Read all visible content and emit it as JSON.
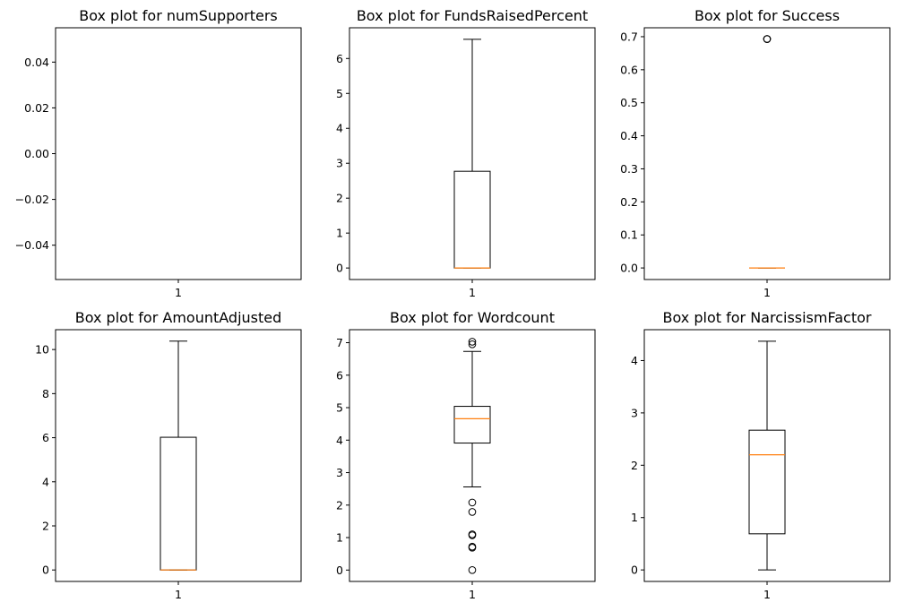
{
  "figure": {
    "background": "#ffffff",
    "box_color": "#000000",
    "median_color": "#ff7f0e"
  },
  "chart_data": [
    {
      "type": "box",
      "title": "Box plot for numSupporters",
      "categories": [
        "1"
      ],
      "ylim": [
        -0.055,
        0.055
      ],
      "yticks": [
        -0.04,
        -0.02,
        0.0,
        0.02,
        0.04
      ],
      "ytick_labels": [
        "−0.04",
        "−0.02",
        "0.00",
        "0.02",
        "0.04"
      ],
      "box": null
    },
    {
      "type": "box",
      "title": "Box plot for FundsRaisedPercent",
      "categories": [
        "1"
      ],
      "ylim": [
        -0.33,
        6.88
      ],
      "yticks": [
        0,
        1,
        2,
        3,
        4,
        5,
        6
      ],
      "ytick_labels": [
        "0",
        "1",
        "2",
        "3",
        "4",
        "5",
        "6"
      ],
      "box": {
        "whisker_low": 0.0,
        "q1": 0.0,
        "median": 0.0,
        "q3": 2.77,
        "whisker_high": 6.55,
        "outliers": []
      }
    },
    {
      "type": "box",
      "title": "Box plot for Success",
      "categories": [
        "1"
      ],
      "ylim": [
        -0.035,
        0.727
      ],
      "yticks": [
        0.0,
        0.1,
        0.2,
        0.3,
        0.4,
        0.5,
        0.6,
        0.7
      ],
      "ytick_labels": [
        "0.0",
        "0.1",
        "0.2",
        "0.3",
        "0.4",
        "0.5",
        "0.6",
        "0.7"
      ],
      "box": {
        "whisker_low": 0.0,
        "q1": 0.0,
        "median": 0.0,
        "q3": 0.0,
        "whisker_high": 0.0,
        "outliers": [
          0.693,
          0.693,
          0.693
        ]
      }
    },
    {
      "type": "box",
      "title": "Box plot for AmountAdjusted",
      "categories": [
        "1"
      ],
      "ylim": [
        -0.52,
        10.9
      ],
      "yticks": [
        0,
        2,
        4,
        6,
        8,
        10
      ],
      "ytick_labels": [
        "0",
        "2",
        "4",
        "6",
        "8",
        "10"
      ],
      "box": {
        "whisker_low": 0.0,
        "q1": 0.0,
        "median": 0.0,
        "q3": 6.02,
        "whisker_high": 10.38,
        "outliers": []
      }
    },
    {
      "type": "box",
      "title": "Box plot for Wordcount",
      "categories": [
        "1"
      ],
      "ylim": [
        -0.35,
        7.4
      ],
      "yticks": [
        0,
        1,
        2,
        3,
        4,
        5,
        6,
        7
      ],
      "ytick_labels": [
        "0",
        "1",
        "2",
        "3",
        "4",
        "5",
        "6",
        "7"
      ],
      "box": {
        "whisker_low": 2.56,
        "q1": 3.91,
        "median": 4.66,
        "q3": 5.04,
        "whisker_high": 6.73,
        "outliers": [
          0.0,
          0.69,
          0.72,
          1.07,
          1.1,
          1.79,
          2.08,
          6.95,
          7.03
        ]
      }
    },
    {
      "type": "box",
      "title": "Box plot for NarcissismFactor",
      "categories": [
        "1"
      ],
      "ylim": [
        -0.22,
        4.59
      ],
      "yticks": [
        0,
        1,
        2,
        3,
        4
      ],
      "ytick_labels": [
        "0",
        "1",
        "2",
        "3",
        "4"
      ],
      "box": {
        "whisker_low": 0.0,
        "q1": 0.69,
        "median": 2.2,
        "q3": 2.67,
        "whisker_high": 4.37,
        "outliers": []
      }
    }
  ]
}
